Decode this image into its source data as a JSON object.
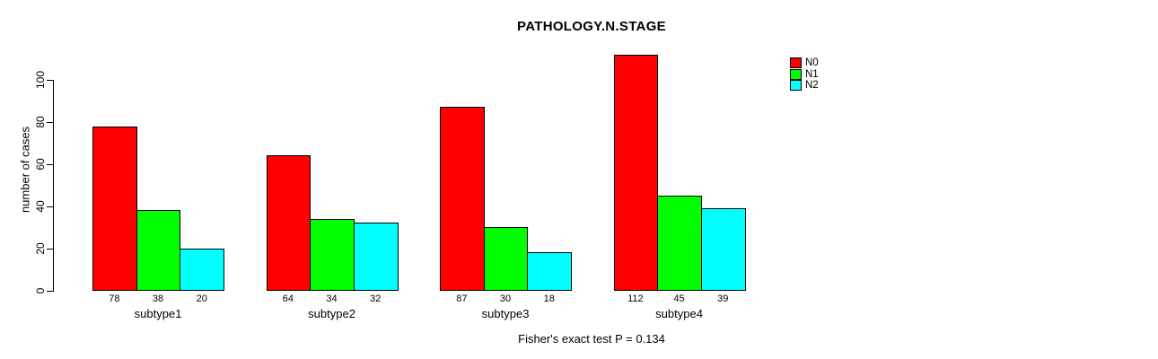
{
  "title": "PATHOLOGY.N.STAGE",
  "annotation": "Fisher's exact test P = 0.134",
  "chart_data": {
    "type": "bar",
    "title": "PATHOLOGY.N.STAGE",
    "xlabel": "",
    "ylabel": "number of cases",
    "categories": [
      "subtype1",
      "subtype2",
      "subtype3",
      "subtype4"
    ],
    "series": [
      {
        "name": "N0",
        "color": "#FF0000",
        "values": [
          78,
          64,
          87,
          112
        ]
      },
      {
        "name": "N1",
        "color": "#00FF00",
        "values": [
          38,
          34,
          30,
          45
        ]
      },
      {
        "name": "N2",
        "color": "#00FFFF",
        "values": [
          20,
          32,
          18,
          39
        ]
      }
    ],
    "bar_value_labels": [
      [
        "78",
        "38",
        "20"
      ],
      [
        "64",
        "34",
        "32"
      ],
      [
        "87",
        "30",
        "18"
      ],
      [
        "112",
        "45",
        "39"
      ]
    ],
    "yticks": [
      0,
      20,
      40,
      60,
      80,
      100
    ],
    "ylim": [
      0,
      117
    ],
    "grid": false,
    "legend_position": "top-right",
    "legend_entries": [
      "N0",
      "N1",
      "N2"
    ],
    "annotation": "Fisher's exact test P = 0.134"
  }
}
